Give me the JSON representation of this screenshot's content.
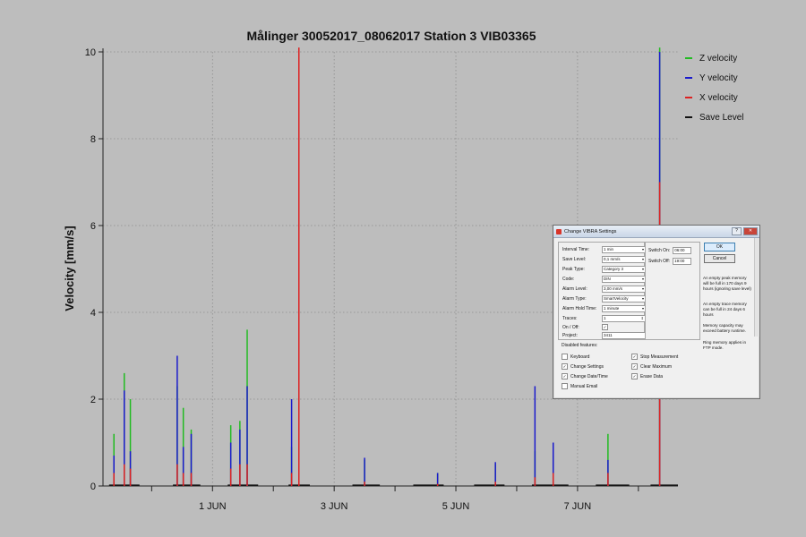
{
  "chart_data": {
    "type": "line",
    "title": "Målinger 30052017_08062017 Station 3 VIB03365",
    "ylabel": "Velocity [mm/s]",
    "xlabel": "",
    "ylim": [
      0,
      10
    ],
    "xlim": [
      -0.8,
      8.65
    ],
    "y_ticks": [
      "0",
      "2",
      "4",
      "6",
      "8",
      "10"
    ],
    "y_tick_values": [
      0,
      2,
      4,
      6,
      8,
      10
    ],
    "x_tick_labels": [
      {
        "label": "1 JUN",
        "day": 1
      },
      {
        "label": "3 JUN",
        "day": 3
      },
      {
        "label": "5 JUN",
        "day": 5
      },
      {
        "label": "7 JUN",
        "day": 7
      }
    ],
    "x_minor_ticks": [
      0,
      1,
      2,
      3,
      4,
      5,
      6,
      7,
      8
    ],
    "grid": true,
    "legend_position": "right",
    "series": [
      {
        "name": "Z velocity",
        "color": "#22bb22"
      },
      {
        "name": "Y velocity",
        "color": "#1a1acc"
      },
      {
        "name": "X velocity",
        "color": "#dd2222"
      },
      {
        "name": "Save Level",
        "color": "#111111"
      }
    ],
    "peaks": [
      {
        "day": -0.62,
        "z": 1.2,
        "y": 0.7,
        "x": 0.3
      },
      {
        "day": -0.45,
        "z": 2.6,
        "y": 2.2,
        "x": 0.5
      },
      {
        "day": -0.35,
        "z": 2.0,
        "y": 0.8,
        "x": 0.4
      },
      {
        "day": 0.42,
        "z": 2.3,
        "y": 3.0,
        "x": 0.5
      },
      {
        "day": 0.52,
        "z": 1.8,
        "y": 0.9,
        "x": 0.3
      },
      {
        "day": 0.65,
        "z": 1.3,
        "y": 1.2,
        "x": 0.3
      },
      {
        "day": 1.3,
        "z": 1.4,
        "y": 1.0,
        "x": 0.4
      },
      {
        "day": 1.45,
        "z": 1.5,
        "y": 1.3,
        "x": 0.5
      },
      {
        "day": 1.57,
        "z": 3.6,
        "y": 2.3,
        "x": 0.5
      },
      {
        "day": 2.3,
        "z": 0.9,
        "y": 2.0,
        "x": 0.3
      },
      {
        "day": 2.42,
        "z": 0.8,
        "y": 0.8,
        "x": 10.1
      },
      {
        "day": 3.5,
        "z": 0.6,
        "y": 0.65,
        "x": 0.1
      },
      {
        "day": 4.7,
        "z": 0.3,
        "y": 0.3,
        "x": 0.05
      },
      {
        "day": 5.65,
        "z": 0.5,
        "y": 0.55,
        "x": 0.1
      },
      {
        "day": 6.3,
        "z": 0.8,
        "y": 2.3,
        "x": 0.2
      },
      {
        "day": 6.6,
        "z": 0.7,
        "y": 1.0,
        "x": 0.3
      },
      {
        "day": 7.5,
        "z": 1.2,
        "y": 0.6,
        "x": 0.3
      },
      {
        "day": 8.35,
        "z": 10.1,
        "y": 10.0,
        "x": 7.0
      }
    ],
    "baseline_segments": [
      [
        -0.7,
        -0.2
      ],
      [
        0.35,
        0.8
      ],
      [
        1.25,
        1.75
      ],
      [
        2.25,
        2.6
      ],
      [
        3.3,
        3.75
      ],
      [
        4.3,
        4.8
      ],
      [
        5.3,
        5.8
      ],
      [
        6.25,
        6.85
      ],
      [
        7.3,
        7.85
      ],
      [
        8.2,
        8.65
      ]
    ]
  },
  "dialog": {
    "title": "Change VIBRA Settings",
    "minimize_symbol": "?",
    "close_symbol": "✕",
    "fields": [
      {
        "label": "Interval Time:",
        "value": "1 min",
        "kind": "select"
      },
      {
        "label": "Save Level:",
        "value": "0,1 mm/s",
        "kind": "select"
      },
      {
        "label": "Peak Type:",
        "value": "Category 3",
        "kind": "select"
      },
      {
        "label": "Code:",
        "value": "DIN",
        "kind": "select"
      },
      {
        "label": "Alarm Level:",
        "value": "3,00 mm/s",
        "kind": "select"
      },
      {
        "label": "Alarm Type:",
        "value": "SmartVelocity",
        "kind": "select"
      },
      {
        "label": "Alarm Hold Time:",
        "value": "1 minute",
        "kind": "select"
      },
      {
        "label": "Traces:",
        "value": "1",
        "kind": "spin"
      },
      {
        "label": "On / Off:",
        "value": "✓",
        "kind": "check"
      },
      {
        "label": "Project:",
        "value": "3411",
        "kind": "text"
      }
    ],
    "switch_on_label": "Switch On:",
    "switch_on_value": "06:00",
    "switch_off_label": "Switch Off:",
    "switch_off_value": "19:00",
    "ok_label": "OK",
    "cancel_label": "Cancel",
    "info": [
      "An empty peak memory will be full in 170 days 9 hours (ignoring save level)",
      "An empty trace memory can be full in 24 days 6 hours",
      "Memory capacity may exceed battery runtime.",
      "Ring memory applies in FTP mode."
    ],
    "disabled_label": "Disabled features:",
    "disabled": [
      {
        "label": "Keyboard",
        "checked": false
      },
      {
        "label": "Stop Measurement",
        "checked": true
      },
      {
        "label": "Change Settings",
        "checked": true
      },
      {
        "label": "Clear Maximum",
        "checked": true
      },
      {
        "label": "Change Date/Time",
        "checked": true
      },
      {
        "label": "Erase Data",
        "checked": true
      },
      {
        "label": "Manual Email",
        "checked": false
      }
    ]
  }
}
